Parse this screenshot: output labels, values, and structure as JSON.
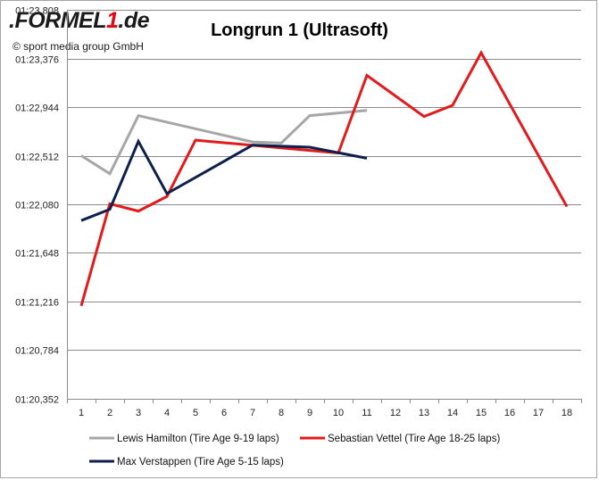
{
  "header": {
    "logo_prefix": ".FORMEL",
    "logo_one": "1",
    "logo_suffix": ".de",
    "copyright": "© sport media group GmbH"
  },
  "chart_data": {
    "type": "line",
    "title": "Longrun 1 (Ultrasoft)",
    "xlabel": "",
    "ylabel": "",
    "categories": [
      "1",
      "2",
      "3",
      "4",
      "5",
      "6",
      "7",
      "8",
      "9",
      "10",
      "11",
      "12",
      "13",
      "14",
      "15",
      "16",
      "17",
      "18"
    ],
    "y_tick_labels": [
      "01:20,352",
      "01:20,784",
      "01:21,216",
      "01:21,648",
      "01:22,080",
      "01:22,512",
      "01:22,944",
      "01:23,376",
      "01:23,808"
    ],
    "ylim_seconds": [
      80.352,
      83.808
    ],
    "y_tick_step_seconds": 0.432,
    "grid": true,
    "legend_position": "bottom",
    "series": [
      {
        "name": "Lewis Hamilton (Tire Age 9-19 laps)",
        "color": "#a6a6a6",
        "x": [
          1,
          2,
          3,
          7,
          8,
          9,
          11
        ],
        "values": [
          82.512,
          82.352,
          82.868,
          82.634,
          82.624,
          82.868,
          82.915
        ]
      },
      {
        "name": "Sebastian Vettel (Tire Age 18-25 laps)",
        "color": "#e31a1c",
        "x": [
          1,
          2,
          3,
          4,
          5,
          10,
          11,
          13,
          14,
          15,
          18
        ],
        "values": [
          81.178,
          82.085,
          82.02,
          82.15,
          82.65,
          82.536,
          83.225,
          82.86,
          82.96,
          83.427,
          82.06
        ]
      },
      {
        "name": "Max Verstappen (Tire Age 5-15 laps)",
        "color": "#0d1f4a",
        "x": [
          1,
          2,
          3,
          4,
          7,
          9,
          11
        ],
        "values": [
          81.936,
          82.036,
          82.64,
          82.175,
          82.606,
          82.587,
          82.489
        ]
      }
    ]
  }
}
